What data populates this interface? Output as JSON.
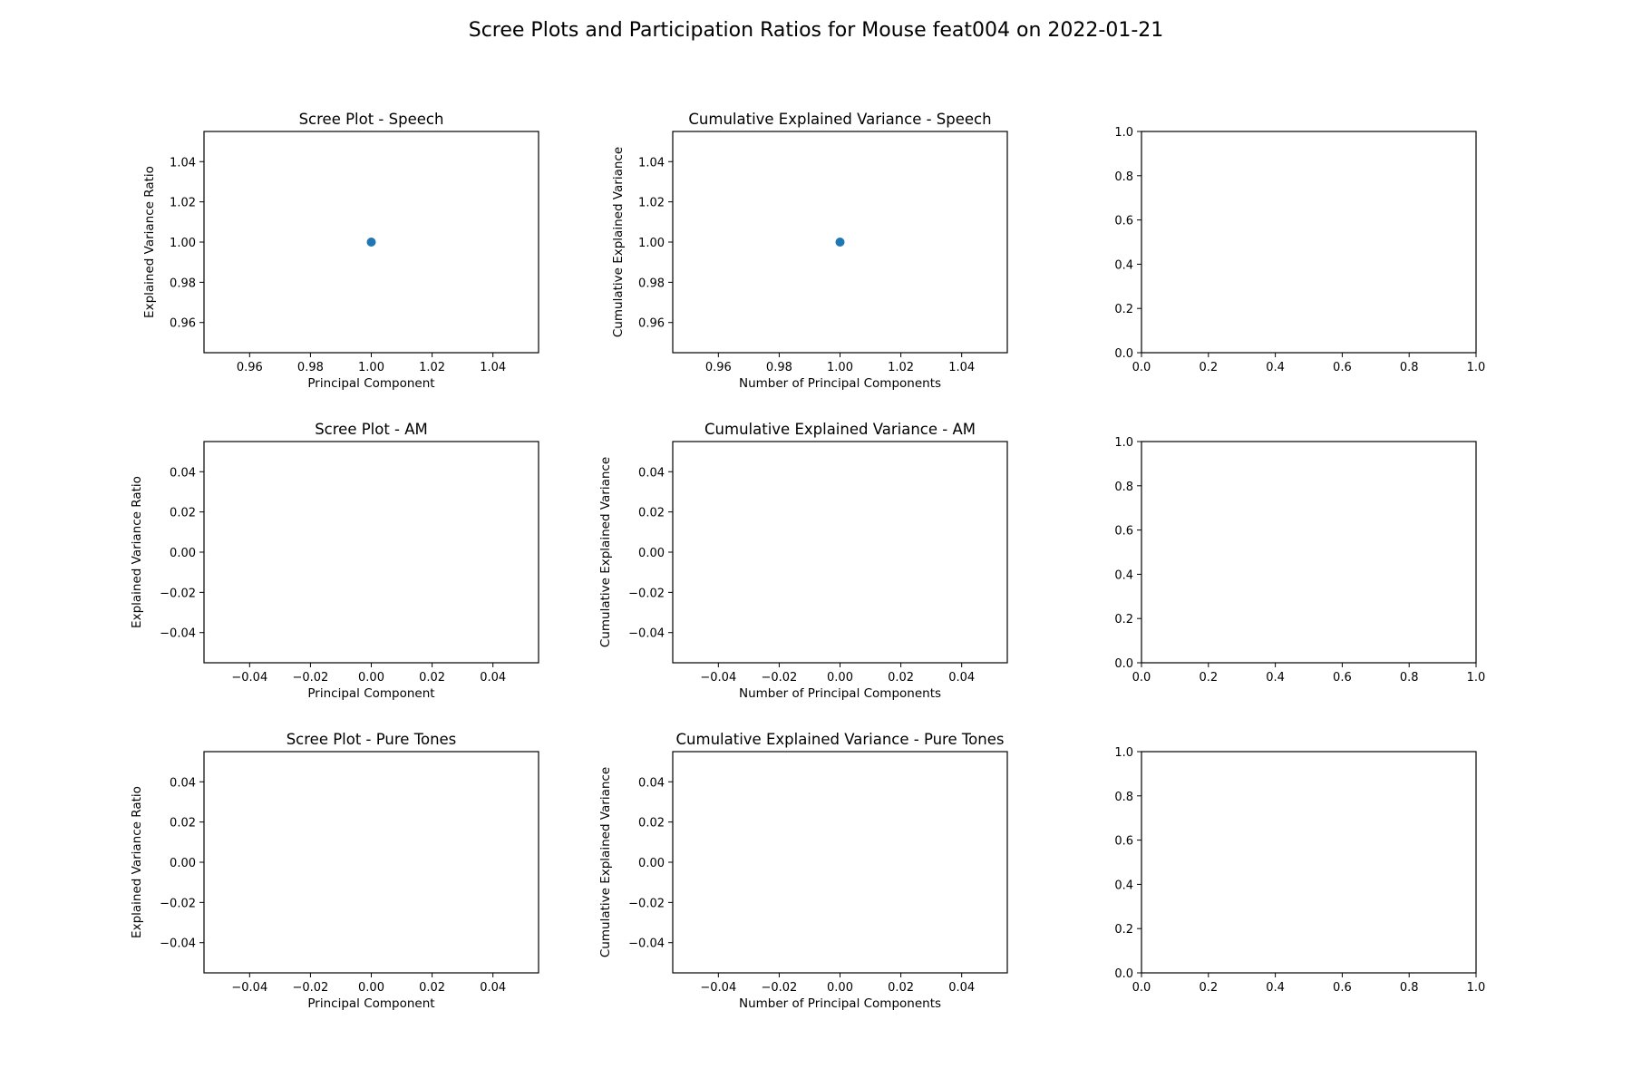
{
  "suptitle": "Scree Plots and Participation Ratios for Mouse feat004 on 2022-01-21",
  "colors": {
    "marker": "#1f77b4",
    "axis": "#000000",
    "background": "#ffffff"
  },
  "chart_data": [
    {
      "type": "scatter",
      "title": "Scree Plot - Speech",
      "xlabel": "Principal Component",
      "ylabel": "Explained Variance Ratio",
      "xlim": [
        0.945,
        1.055
      ],
      "ylim": [
        0.945,
        1.055
      ],
      "xticks": [
        "0.96",
        "0.98",
        "1.00",
        "1.02",
        "1.04"
      ],
      "yticks": [
        "0.96",
        "0.98",
        "1.00",
        "1.02",
        "1.04"
      ],
      "points": [
        [
          1.0,
          1.0
        ]
      ],
      "grid": false
    },
    {
      "type": "scatter",
      "title": "Cumulative Explained Variance - Speech",
      "xlabel": "Number of Principal Components",
      "ylabel": "Cumulative Explained Variance",
      "xlim": [
        0.945,
        1.055
      ],
      "ylim": [
        0.945,
        1.055
      ],
      "xticks": [
        "0.96",
        "0.98",
        "1.00",
        "1.02",
        "1.04"
      ],
      "yticks": [
        "0.96",
        "0.98",
        "1.00",
        "1.02",
        "1.04"
      ],
      "points": [
        [
          1.0,
          1.0
        ]
      ],
      "grid": false
    },
    {
      "type": "scatter",
      "title": "",
      "xlabel": "",
      "ylabel": "",
      "xlim": [
        0.0,
        1.0
      ],
      "ylim": [
        0.0,
        1.0
      ],
      "xticks": [
        "0.0",
        "0.2",
        "0.4",
        "0.6",
        "0.8",
        "1.0"
      ],
      "yticks": [
        "0.0",
        "0.2",
        "0.4",
        "0.6",
        "0.8",
        "1.0"
      ],
      "points": [],
      "grid": false
    },
    {
      "type": "scatter",
      "title": "Scree Plot - AM",
      "xlabel": "Principal Component",
      "ylabel": "Explained Variance Ratio",
      "xlim": [
        -0.055,
        0.055
      ],
      "ylim": [
        -0.055,
        0.055
      ],
      "xticks": [
        "−0.04",
        "−0.02",
        "0.00",
        "0.02",
        "0.04"
      ],
      "yticks": [
        "−0.04",
        "−0.02",
        "0.00",
        "0.02",
        "0.04"
      ],
      "points": [],
      "grid": false
    },
    {
      "type": "scatter",
      "title": "Cumulative Explained Variance - AM",
      "xlabel": "Number of Principal Components",
      "ylabel": "Cumulative Explained Variance",
      "xlim": [
        -0.055,
        0.055
      ],
      "ylim": [
        -0.055,
        0.055
      ],
      "xticks": [
        "−0.04",
        "−0.02",
        "0.00",
        "0.02",
        "0.04"
      ],
      "yticks": [
        "−0.04",
        "−0.02",
        "0.00",
        "0.02",
        "0.04"
      ],
      "points": [],
      "grid": false
    },
    {
      "type": "scatter",
      "title": "",
      "xlabel": "",
      "ylabel": "",
      "xlim": [
        0.0,
        1.0
      ],
      "ylim": [
        0.0,
        1.0
      ],
      "xticks": [
        "0.0",
        "0.2",
        "0.4",
        "0.6",
        "0.8",
        "1.0"
      ],
      "yticks": [
        "0.0",
        "0.2",
        "0.4",
        "0.6",
        "0.8",
        "1.0"
      ],
      "points": [],
      "grid": false
    },
    {
      "type": "scatter",
      "title": "Scree Plot - Pure Tones",
      "xlabel": "Principal Component",
      "ylabel": "Explained Variance Ratio",
      "xlim": [
        -0.055,
        0.055
      ],
      "ylim": [
        -0.055,
        0.055
      ],
      "xticks": [
        "−0.04",
        "−0.02",
        "0.00",
        "0.02",
        "0.04"
      ],
      "yticks": [
        "−0.04",
        "−0.02",
        "0.00",
        "0.02",
        "0.04"
      ],
      "points": [],
      "grid": false
    },
    {
      "type": "scatter",
      "title": "Cumulative Explained Variance - Pure Tones",
      "xlabel": "Number of Principal Components",
      "ylabel": "Cumulative Explained Variance",
      "xlim": [
        -0.055,
        0.055
      ],
      "ylim": [
        -0.055,
        0.055
      ],
      "xticks": [
        "−0.04",
        "−0.02",
        "0.00",
        "0.02",
        "0.04"
      ],
      "yticks": [
        "−0.04",
        "−0.02",
        "0.00",
        "0.02",
        "0.04"
      ],
      "points": [],
      "grid": false
    },
    {
      "type": "scatter",
      "title": "",
      "xlabel": "",
      "ylabel": "",
      "xlim": [
        0.0,
        1.0
      ],
      "ylim": [
        0.0,
        1.0
      ],
      "xticks": [
        "0.0",
        "0.2",
        "0.4",
        "0.6",
        "0.8",
        "1.0"
      ],
      "yticks": [
        "0.0",
        "0.2",
        "0.4",
        "0.6",
        "0.8",
        "1.0"
      ],
      "points": [],
      "grid": false
    }
  ]
}
